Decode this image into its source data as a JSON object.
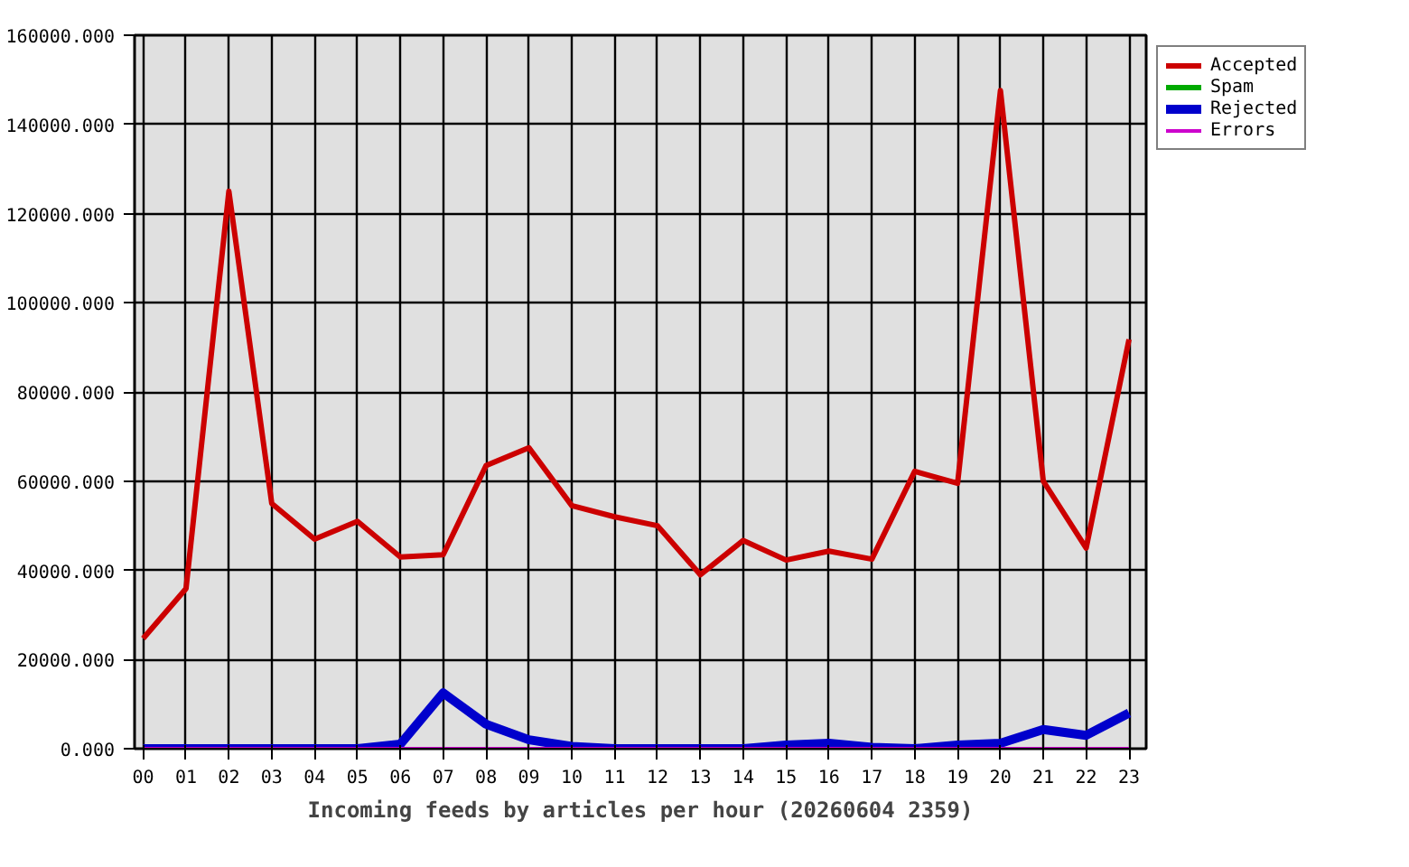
{
  "chart_data": {
    "type": "line",
    "xlabel": "Incoming feeds by articles per hour (20260604 2359)",
    "categories": [
      "00",
      "01",
      "02",
      "03",
      "04",
      "05",
      "06",
      "07",
      "08",
      "09",
      "10",
      "11",
      "12",
      "13",
      "14",
      "15",
      "16",
      "17",
      "18",
      "19",
      "20",
      "21",
      "22",
      "23"
    ],
    "series": [
      {
        "name": "Accepted",
        "color": "#cc0000",
        "values": [
          24700,
          35900,
          125000,
          55000,
          47000,
          51000,
          43000,
          43500,
          63500,
          67500,
          54500,
          52000,
          50000,
          39000,
          46700,
          42300,
          44300,
          42500,
          62200,
          59500,
          147600,
          60000,
          45000,
          91800
        ]
      },
      {
        "name": "Spam",
        "color": "#00aa00",
        "values": [
          null,
          null,
          null,
          null,
          null,
          null,
          null,
          null,
          null,
          null,
          null,
          null,
          null,
          null,
          null,
          null,
          null,
          null,
          null,
          null,
          null,
          null,
          null,
          null
        ]
      },
      {
        "name": "Rejected",
        "color": "#0000cc",
        "values": [
          0,
          0,
          0,
          0,
          0,
          0,
          1000,
          12500,
          5500,
          2000,
          500,
          0,
          0,
          0,
          0,
          800,
          1200,
          300,
          0,
          800,
          1200,
          4300,
          3000,
          8000
        ]
      },
      {
        "name": "Errors",
        "color": "#cc00cc",
        "values": [
          0,
          0,
          0,
          0,
          0,
          0,
          0,
          0,
          0,
          0,
          0,
          0,
          0,
          0,
          0,
          0,
          0,
          0,
          0,
          0,
          0,
          0,
          0,
          0
        ]
      }
    ],
    "ylim": [
      0,
      160000
    ],
    "yticks": [
      {
        "value": 0,
        "label": "0.000"
      },
      {
        "value": 20000,
        "label": "20000.000"
      },
      {
        "value": 40000,
        "label": "40000.000"
      },
      {
        "value": 60000,
        "label": "60000.000"
      },
      {
        "value": 80000,
        "label": "80000.000"
      },
      {
        "value": 100000,
        "label": "100000.000"
      },
      {
        "value": 120000,
        "label": "120000.000"
      },
      {
        "value": 140000,
        "label": "140000.000"
      },
      {
        "value": 160000,
        "label": "160000.000"
      }
    ],
    "grid": true,
    "legend": "top right",
    "line_style": "solid"
  }
}
